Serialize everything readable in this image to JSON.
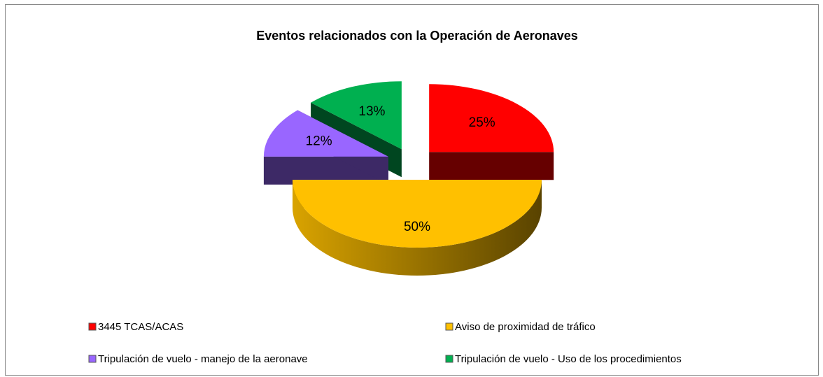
{
  "chart_data": {
    "type": "pie",
    "title": "Eventos relacionados con la Operación de Aeronaves",
    "categories": [
      "3445 TCAS/ACAS",
      "Aviso de proximidad de tráfico",
      "Tripulación de vuelo - manejo de la aeronave",
      "Tripulación de vuelo - Uso de los procedimientos"
    ],
    "values": [
      25,
      50,
      12,
      13
    ],
    "value_labels": [
      "25%",
      "50%",
      "12%",
      "13%"
    ],
    "colors": [
      "#ff0000",
      "#ffc000",
      "#9966ff",
      "#00b050"
    ],
    "legend": "bottom"
  }
}
